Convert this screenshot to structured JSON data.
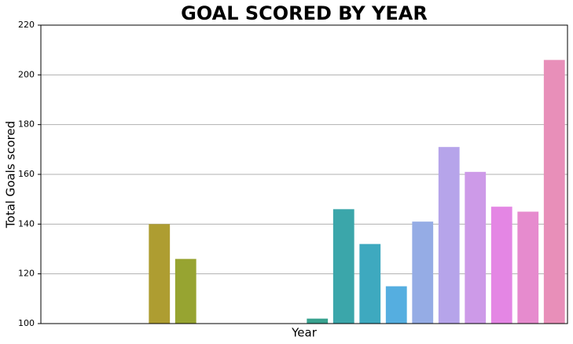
{
  "chart_data": {
    "type": "bar",
    "title": "GOAL SCORED BY YEAR",
    "x_label": "Year",
    "y_label": "Total Goals scored",
    "categories": [
      null,
      null,
      null,
      null,
      null,
      null,
      null,
      null,
      null,
      null,
      null,
      null,
      null,
      null,
      null,
      null,
      null,
      null,
      null,
      null
    ],
    "values": [
      null,
      null,
      null,
      null,
      140,
      126,
      null,
      null,
      null,
      null,
      102,
      146,
      132,
      115,
      141,
      171,
      161,
      147,
      145,
      206
    ],
    "colors": [
      null,
      null,
      null,
      null,
      "#ae9d31",
      "#97a431",
      null,
      null,
      null,
      null,
      "#39a28f",
      "#3ba6aa",
      "#3ea9bf",
      "#55aee0",
      "#95ace5",
      "#b6a4ea",
      "#cd9ae8",
      "#e486e4",
      "#e68bce",
      "#e88fb9"
    ],
    "ylim": [
      100,
      220
    ],
    "yticks": [
      100,
      120,
      140,
      160,
      180,
      200,
      220
    ],
    "grid": true
  }
}
